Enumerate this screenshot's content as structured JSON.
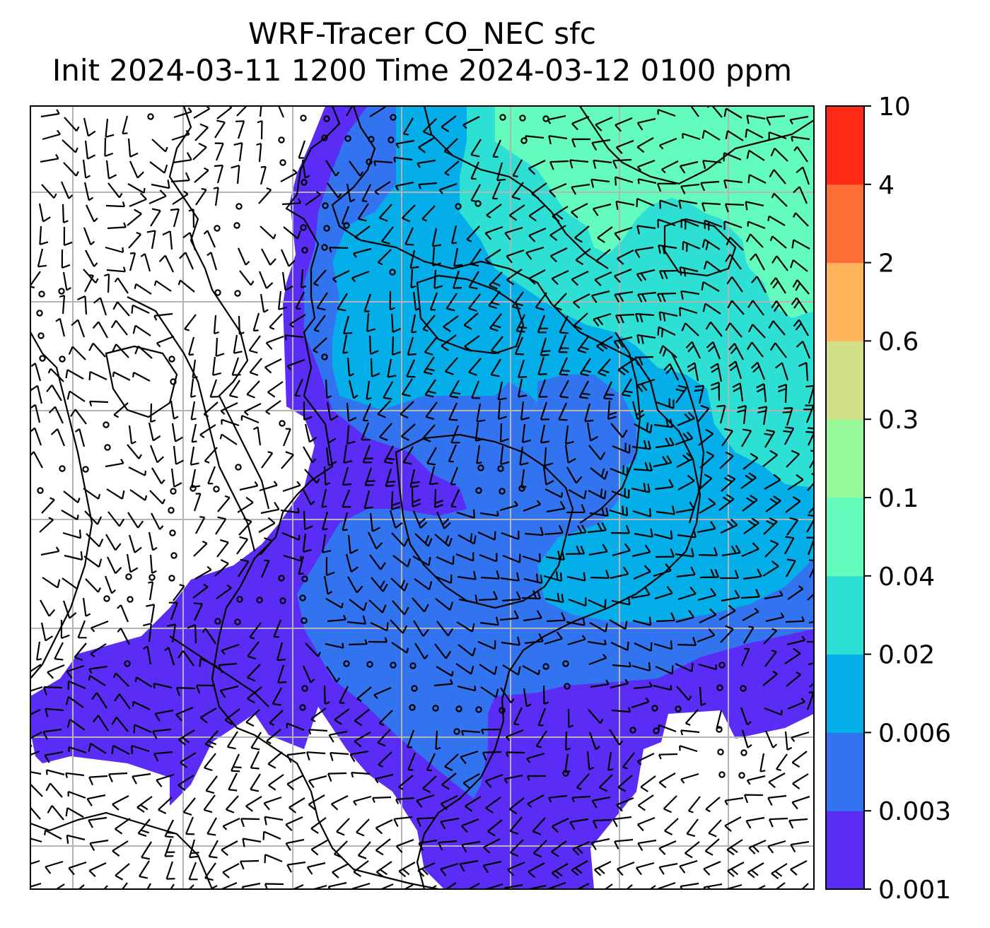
{
  "title": {
    "line1": "WRF-Tracer CO_NEC sfc",
    "line2": "Init 2024-03-11 1200 Time 2024-03-12 0100 ppm"
  },
  "colorbar": {
    "levels": [
      "0.001",
      "0.003",
      "0.006",
      "0.02",
      "0.04",
      "0.1",
      "0.3",
      "0.6",
      "2",
      "4",
      "10"
    ],
    "colors": [
      "#5b2cf5",
      "#3274ef",
      "#04aee9",
      "#2ee0d4",
      "#63fcbc",
      "#98f99b",
      "#d2e085",
      "#ffb35b",
      "#ff6e37",
      "#ff2b16"
    ]
  },
  "map": {
    "field": "CO_NEC",
    "level": "sfc",
    "units": "ppm",
    "gridlines": true,
    "wind_barbs": true,
    "coastlines": true
  }
}
